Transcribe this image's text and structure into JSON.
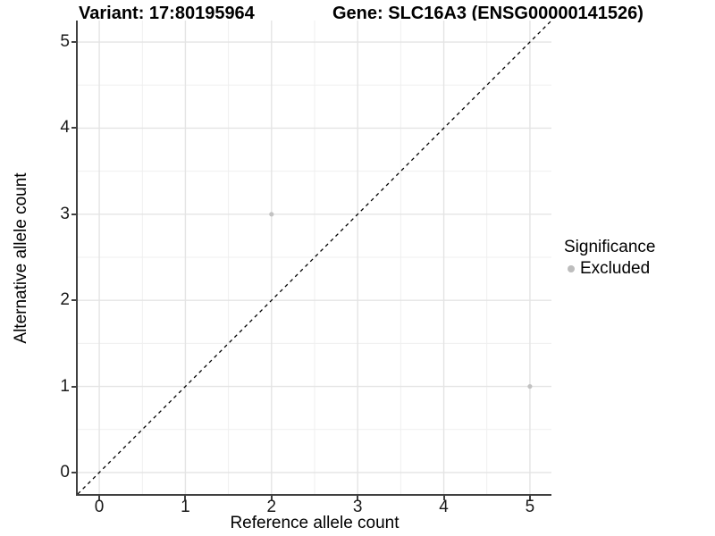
{
  "chart_data": {
    "type": "scatter",
    "title_left": "Variant: 17:80195964",
    "title_right": "Gene: SLC16A3 (ENSG00000141526)",
    "xlabel": "Reference allele count",
    "ylabel": "Alternative allele count",
    "xlim": [
      -0.25,
      5.25
    ],
    "ylim": [
      -0.25,
      5.25
    ],
    "x_ticks": [
      0,
      1,
      2,
      3,
      4,
      5
    ],
    "y_ticks": [
      0,
      1,
      2,
      3,
      4,
      5
    ],
    "x_minor_ticks": [
      0.5,
      1.5,
      2.5,
      3.5,
      4.5
    ],
    "y_minor_ticks": [
      0.5,
      1.5,
      2.5,
      3.5,
      4.5
    ],
    "grid": true,
    "series": [
      {
        "name": "Excluded",
        "color": "#c2c2c2",
        "point_radius": 2.6,
        "points": [
          {
            "x": 2,
            "y": 3
          },
          {
            "x": 5,
            "y": 1
          }
        ]
      }
    ],
    "reference_line": {
      "description": "identity line y = x",
      "slope": 1,
      "intercept": 0,
      "style": "dashed",
      "color": "#000000"
    },
    "legend": {
      "title": "Significance",
      "position": "right",
      "items": [
        {
          "label": "Excluded",
          "color": "#bdbdbd"
        }
      ]
    }
  },
  "colors": {
    "background": "#ffffff",
    "axis_line": "#404040",
    "grid_major": "#e4e4e4",
    "grid_minor": "#efefef",
    "tick_text": "#1a1a1a",
    "point": "#c2c2c2"
  }
}
